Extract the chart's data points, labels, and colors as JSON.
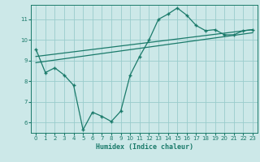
{
  "xlabel": "Humidex (Indice chaleur)",
  "ylabel": "",
  "bg_color": "#cce8e8",
  "grid_color": "#99cccc",
  "line_color": "#1a7a6a",
  "xlim": [
    -0.5,
    23.5
  ],
  "ylim": [
    5.5,
    11.7
  ],
  "yticks": [
    6,
    7,
    8,
    9,
    10,
    11
  ],
  "xticks": [
    0,
    1,
    2,
    3,
    4,
    5,
    6,
    7,
    8,
    9,
    10,
    11,
    12,
    13,
    14,
    15,
    16,
    17,
    18,
    19,
    20,
    21,
    22,
    23
  ],
  "line1_x": [
    0,
    1,
    2,
    3,
    4,
    5,
    6,
    7,
    8,
    9,
    10,
    11,
    12,
    13,
    14,
    15,
    16,
    17,
    18,
    19,
    20,
    21,
    22,
    23
  ],
  "line1_y": [
    9.55,
    8.42,
    8.65,
    8.3,
    7.8,
    5.65,
    6.5,
    6.3,
    6.05,
    6.55,
    8.3,
    9.2,
    10.0,
    11.0,
    11.25,
    11.55,
    11.2,
    10.7,
    10.45,
    10.5,
    10.25,
    10.25,
    10.45,
    10.5
  ],
  "line2_x": [
    0,
    23
  ],
  "line2_y": [
    9.2,
    10.5
  ],
  "line3_x": [
    0,
    23
  ],
  "line3_y": [
    8.9,
    10.35
  ],
  "marker": "+",
  "markersize": 4
}
